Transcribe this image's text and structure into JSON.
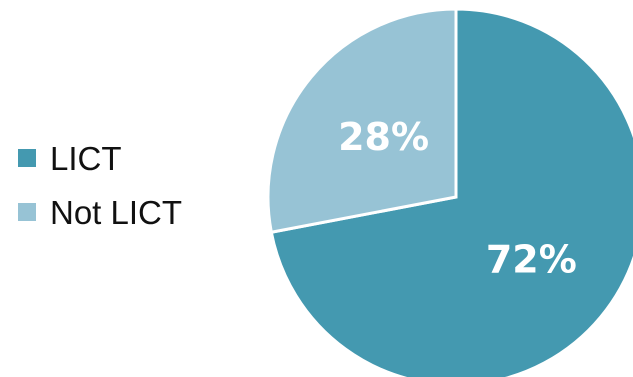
{
  "chart_data": {
    "type": "pie",
    "categories": [
      "LICT",
      "Not LICT"
    ],
    "values": [
      72,
      28
    ],
    "labels": [
      "72%",
      "28%"
    ],
    "colors": [
      "#4499B0",
      "#97C3D5"
    ],
    "legend": "left"
  }
}
